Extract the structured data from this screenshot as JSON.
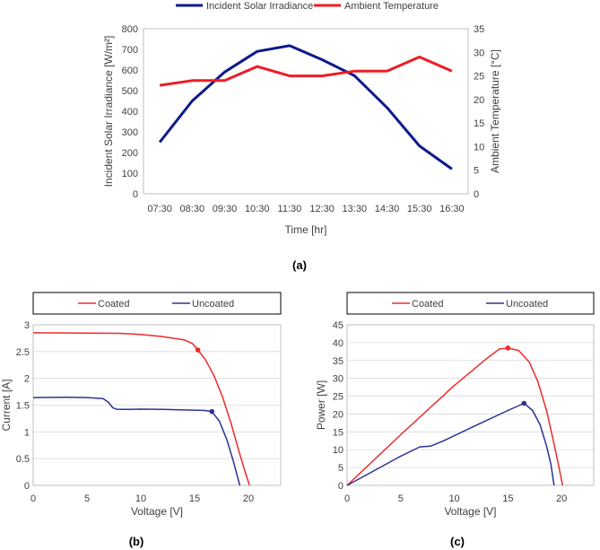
{
  "chart_data": [
    {
      "id": "a",
      "type": "line",
      "panel_label": "(a)",
      "categories": [
        "07:30",
        "08:30",
        "09:30",
        "10:30",
        "11:30",
        "12:30",
        "13:30",
        "14:30",
        "15:30",
        "16:30"
      ],
      "xlabel": "Time [hr]",
      "ylabel": "Incident Solar Irradiance [W/m²]",
      "ylabel_right": "Ambient Temperature [°C]",
      "ylim": [
        0,
        800
      ],
      "yticks": [
        0,
        100,
        200,
        300,
        400,
        500,
        600,
        700,
        800
      ],
      "ylim_right": [
        0,
        35
      ],
      "yticks_right": [
        0,
        5,
        10,
        15,
        20,
        25,
        30,
        35
      ],
      "legend_position": "top",
      "series": [
        {
          "name": "Incident Solar Irradiance",
          "axis": "left",
          "color": "#0d1a8c",
          "values": [
            250,
            450,
            590,
            690,
            718,
            650,
            572,
            418,
            232,
            120
          ]
        },
        {
          "name": "Ambient Temperature",
          "axis": "right",
          "color": "#ee1c25",
          "values": [
            23,
            24,
            24,
            27,
            25,
            25,
            26,
            26,
            29,
            26
          ]
        }
      ]
    },
    {
      "id": "b",
      "type": "line",
      "panel_label": "(b)",
      "xlabel": "Voltage [V]",
      "ylabel": "Current [A]",
      "xlim": [
        0,
        23
      ],
      "xticks": [
        0,
        5,
        10,
        15,
        20
      ],
      "ylim": [
        0,
        3
      ],
      "yticks": [
        0,
        0.5,
        1,
        1.5,
        2,
        2.5,
        3
      ],
      "legend_position": "top",
      "series": [
        {
          "name": "Coated",
          "color": "#ee2a2a",
          "points": [
            [
              0,
              2.85
            ],
            [
              5,
              2.845
            ],
            [
              8,
              2.84
            ],
            [
              10,
              2.82
            ],
            [
              12,
              2.78
            ],
            [
              14,
              2.72
            ],
            [
              14.8,
              2.65
            ],
            [
              15.3,
              2.53
            ],
            [
              16,
              2.35
            ],
            [
              16.8,
              2.05
            ],
            [
              17.6,
              1.65
            ],
            [
              18.4,
              1.15
            ],
            [
              19.1,
              0.65
            ],
            [
              19.7,
              0.25
            ],
            [
              20.1,
              0
            ]
          ],
          "mpp": [
            15.3,
            2.53
          ]
        },
        {
          "name": "Uncoated",
          "color": "#2e3192",
          "points": [
            [
              0,
              1.64
            ],
            [
              3,
              1.645
            ],
            [
              5,
              1.64
            ],
            [
              6.5,
              1.62
            ],
            [
              7,
              1.55
            ],
            [
              7.4,
              1.45
            ],
            [
              7.8,
              1.42
            ],
            [
              9,
              1.42
            ],
            [
              10,
              1.425
            ],
            [
              12,
              1.42
            ],
            [
              14,
              1.41
            ],
            [
              16,
              1.4
            ],
            [
              16.6,
              1.38
            ],
            [
              17.3,
              1.2
            ],
            [
              18,
              0.85
            ],
            [
              18.6,
              0.45
            ],
            [
              19,
              0.15
            ],
            [
              19.2,
              0
            ]
          ],
          "mpp": [
            16.6,
            1.38
          ]
        }
      ]
    },
    {
      "id": "c",
      "type": "line",
      "panel_label": "(c)",
      "xlabel": "Voltage [V]",
      "ylabel": "Power [W]",
      "xlim": [
        0,
        23
      ],
      "xticks": [
        0,
        5,
        10,
        15,
        20
      ],
      "ylim": [
        0,
        45
      ],
      "yticks": [
        0,
        5,
        10,
        15,
        20,
        25,
        30,
        35,
        40,
        45
      ],
      "legend_position": "top",
      "series": [
        {
          "name": "Coated",
          "color": "#ee2a2a",
          "points": [
            [
              0,
              0
            ],
            [
              5,
              14.2
            ],
            [
              10,
              28
            ],
            [
              13,
              35.5
            ],
            [
              14.2,
              38.2
            ],
            [
              15,
              38.5
            ],
            [
              16,
              37.8
            ],
            [
              17,
              34.5
            ],
            [
              17.8,
              29
            ],
            [
              18.6,
              21
            ],
            [
              19.2,
              13
            ],
            [
              19.7,
              6
            ],
            [
              20.1,
              0
            ]
          ],
          "mpp": [
            15,
            38.5
          ]
        },
        {
          "name": "Uncoated",
          "color": "#2e3192",
          "points": [
            [
              0,
              0
            ],
            [
              3,
              4.9
            ],
            [
              5,
              8.2
            ],
            [
              6.8,
              10.8
            ],
            [
              7.8,
              11
            ],
            [
              9,
              12.5
            ],
            [
              12,
              16.8
            ],
            [
              15,
              21
            ],
            [
              16.5,
              23
            ],
            [
              17.3,
              21
            ],
            [
              18,
              17
            ],
            [
              18.6,
              11
            ],
            [
              19,
              6
            ],
            [
              19.3,
              0
            ]
          ],
          "mpp": [
            16.5,
            23
          ]
        }
      ]
    }
  ]
}
